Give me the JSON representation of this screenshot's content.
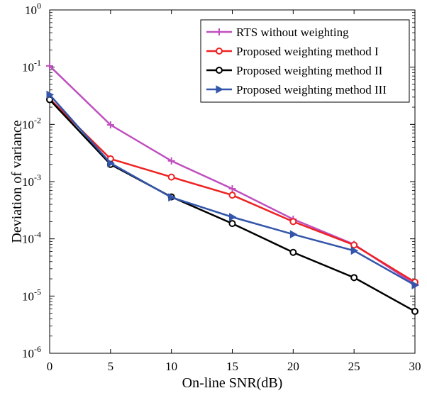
{
  "chart_data": {
    "type": "line",
    "xlabel": "On-line SNR(dB)",
    "ylabel": "Deviation of variance",
    "x": [
      0,
      5,
      10,
      15,
      20,
      25,
      30
    ],
    "xlim": [
      0,
      30
    ],
    "x_ticks": [
      "0",
      "5",
      "10",
      "15",
      "20",
      "25",
      "30"
    ],
    "ylim": [
      1e-06,
      1
    ],
    "yscale": "log",
    "y_ticks": [
      {
        "base": "10",
        "exp": "-6",
        "value": 1e-06
      },
      {
        "base": "10",
        "exp": "-5",
        "value": 1e-05
      },
      {
        "base": "10",
        "exp": "-4",
        "value": 0.0001
      },
      {
        "base": "10",
        "exp": "-3",
        "value": 0.001
      },
      {
        "base": "10",
        "exp": "-2",
        "value": 0.01
      },
      {
        "base": "10",
        "exp": "-1",
        "value": 0.1
      },
      {
        "base": "10",
        "exp": "0",
        "value": 1
      }
    ],
    "grid": false,
    "legend_position": "top-right",
    "series": [
      {
        "name": "RTS without weighting",
        "color": "#bf4fbf",
        "marker": "plus",
        "values": [
          0.105,
          0.0098,
          0.0023,
          0.00075,
          0.00022,
          8e-05,
          1.6e-05
        ]
      },
      {
        "name": "Proposed weighting method I",
        "color": "#ee2222",
        "marker": "circle",
        "values": [
          0.028,
          0.0025,
          0.0012,
          0.00058,
          0.0002,
          7.8e-05,
          1.75e-05
        ]
      },
      {
        "name": "Proposed weighting method II",
        "color": "#000000",
        "marker": "circle",
        "values": [
          0.027,
          0.002,
          0.00054,
          0.000185,
          5.8e-05,
          2.1e-05,
          5.4e-06
        ]
      },
      {
        "name": "Proposed weighting method III",
        "color": "#3355aa",
        "marker": "triangle-right",
        "values": [
          0.033,
          0.0021,
          0.00053,
          0.00024,
          0.00012,
          6.2e-05,
          1.55e-05
        ]
      }
    ]
  }
}
